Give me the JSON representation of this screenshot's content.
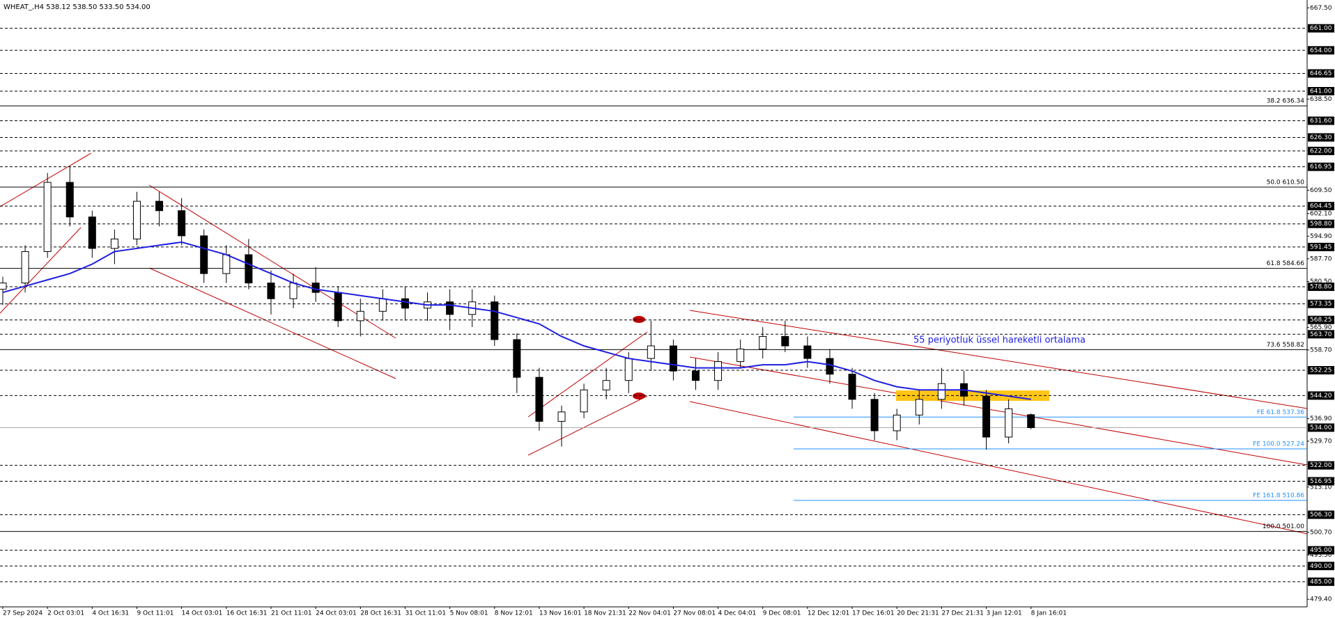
{
  "chart_data": {
    "type": "candlestick",
    "symbol": "WHEAT_,H4",
    "header_values": [
      "538.12",
      "538.50",
      "533.50",
      "534.00"
    ],
    "annotation": "55 periyotluk üssel hareketli ortalama",
    "categories": [
      "27 Sep 2024",
      null,
      "2 Oct 03:01",
      null,
      "4 Oct 16:31",
      null,
      "9 Oct 11:01",
      null,
      "14 Oct 03:01",
      null,
      "16 Oct 16:31",
      null,
      "21 Oct 11:01",
      null,
      "24 Oct 03:01",
      null,
      "28 Oct 16:31",
      null,
      "31 Oct 11:01",
      null,
      "5 Nov 08:01",
      null,
      "8 Nov 12:01",
      null,
      "13 Nov 16:01",
      null,
      "18 Nov 21:31",
      null,
      "22 Nov 04:01",
      null,
      "27 Nov 08:01",
      null,
      "4 Dec 04:01",
      null,
      "9 Dec 08:01",
      null,
      "12 Dec 12:01",
      null,
      "17 Dec 16:01",
      null,
      "20 Dec 21:31",
      null,
      "27 Dec 21:31",
      null,
      "3 Jan 12:01",
      null,
      "8 Jan 16:01"
    ],
    "open": [
      578,
      580,
      590,
      612,
      601,
      591,
      594,
      606,
      603,
      595,
      583,
      589,
      580,
      575,
      580,
      577,
      568,
      571,
      575,
      572,
      574,
      570,
      574,
      562,
      550,
      536,
      539,
      546,
      549,
      556,
      560,
      552,
      549,
      555,
      559,
      563,
      560,
      556,
      551,
      543,
      533,
      538,
      543,
      548,
      544,
      531,
      538.12
    ],
    "high": [
      582,
      592,
      615,
      617,
      603,
      597,
      609,
      609,
      607,
      597,
      592,
      594,
      584,
      583,
      585,
      579,
      575,
      578,
      579,
      577,
      578,
      578,
      576,
      564,
      553,
      541,
      548,
      553,
      558,
      568,
      562,
      556,
      558,
      562,
      566,
      568,
      563,
      559,
      553,
      545,
      540,
      546,
      553,
      552,
      546,
      543,
      538.5
    ],
    "low": [
      573,
      577,
      588,
      598,
      588,
      586,
      592,
      598,
      592,
      580,
      580,
      578,
      570,
      572,
      574,
      566,
      563,
      568,
      568,
      568,
      565,
      566,
      560,
      545,
      533,
      528,
      537,
      543,
      545,
      552,
      549,
      546,
      546,
      553,
      556,
      558,
      553,
      548,
      540,
      530,
      530,
      535,
      540,
      541,
      527,
      529,
      533.5
    ],
    "close": [
      580,
      590,
      612,
      601,
      591,
      594,
      606,
      603,
      595,
      583,
      589,
      580,
      575,
      580,
      577,
      568,
      571,
      575,
      572,
      574,
      570,
      574,
      562,
      550,
      536,
      539,
      546,
      549,
      556,
      560,
      552,
      549,
      555,
      559,
      563,
      560,
      556,
      551,
      543,
      533,
      538,
      543,
      548,
      544,
      531,
      540,
      534
    ],
    "ema": [
      577,
      579,
      581,
      583,
      586,
      590,
      591,
      592,
      593,
      591,
      589,
      586,
      583,
      580,
      578,
      577,
      576,
      575,
      574,
      573,
      573,
      572,
      571,
      569,
      567,
      563,
      560,
      558,
      556,
      555,
      554,
      553,
      553,
      553,
      554,
      554,
      555,
      554,
      552,
      549,
      547,
      546,
      546,
      546,
      545,
      544,
      543
    ],
    "ylim": [
      477,
      670
    ],
    "yticks": [
      {
        "value": 667.5,
        "label": "667.50"
      },
      {
        "value": 638.5,
        "label": "638.50"
      },
      {
        "value": 609.5,
        "label": "609.50"
      },
      {
        "value": 602.1,
        "label": "602.10"
      },
      {
        "value": 594.9,
        "label": "594.90"
      },
      {
        "value": 587.7,
        "label": "587.70"
      },
      {
        "value": 580.5,
        "label": "580.50"
      },
      {
        "value": 565.9,
        "label": "565.90"
      },
      {
        "value": 558.7,
        "label": "558.70"
      },
      {
        "value": 536.9,
        "label": "536.90"
      },
      {
        "value": 529.7,
        "label": "529.70"
      },
      {
        "value": 515.1,
        "label": "515.10"
      },
      {
        "value": 500.7,
        "label": "500.70"
      },
      {
        "value": 493.5,
        "label": "493.50"
      },
      {
        "value": 479.4,
        "label": "479.40"
      }
    ],
    "levels": [
      {
        "value": 661,
        "label": "661.00"
      },
      {
        "value": 654,
        "label": "654.00"
      },
      {
        "value": 646.65,
        "label": "646.65"
      },
      {
        "value": 641,
        "label": "641.00"
      },
      {
        "value": 631.6,
        "label": "631.60"
      },
      {
        "value": 626.3,
        "label": "626.30"
      },
      {
        "value": 622,
        "label": "622.00"
      },
      {
        "value": 616.95,
        "label": "616.95"
      },
      {
        "value": 604.45,
        "label": "604.45"
      },
      {
        "value": 598.8,
        "label": "598.80"
      },
      {
        "value": 591.45,
        "label": "591.45"
      },
      {
        "value": 578.8,
        "label": "578.80"
      },
      {
        "value": 573.35,
        "label": "573.35"
      },
      {
        "value": 568.25,
        "label": "568.25"
      },
      {
        "value": 563.7,
        "label": "563.70"
      },
      {
        "value": 552.25,
        "label": "552.25"
      },
      {
        "value": 544.2,
        "label": "544.20"
      },
      {
        "value": 522,
        "label": "522.00"
      },
      {
        "value": 516.95,
        "label": "516.95"
      },
      {
        "value": 506.3,
        "label": "506.30"
      },
      {
        "value": 495,
        "label": "495.00"
      },
      {
        "value": 490,
        "label": "490.00"
      },
      {
        "value": 485,
        "label": "485.00"
      }
    ],
    "current_price": {
      "value": 534,
      "label": "534.00"
    },
    "fib_levels": [
      {
        "value": 636.34,
        "label": "38.2 636.34"
      },
      {
        "value": 610.5,
        "label": "50.0 610.50"
      },
      {
        "value": 584.66,
        "label": "61.8 584.66"
      },
      {
        "value": 558.82,
        "label": "73.6 558.82"
      },
      {
        "value": 501,
        "label": "100.0 501.00"
      }
    ],
    "fe_levels": [
      {
        "value": 537.36,
        "label": "FE 61.8 537.36"
      },
      {
        "value": 527.24,
        "label": "FE 100.0 527.24"
      },
      {
        "value": 510.86,
        "label": "FE 161.8 510.86"
      }
    ]
  }
}
